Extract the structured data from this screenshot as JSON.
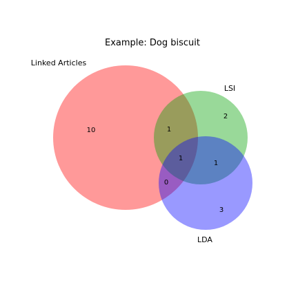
{
  "diagram": {
    "type": "venn3",
    "title": "Example: Dog biscuit",
    "sets": [
      {
        "name": "Linked Articles",
        "color": "#ff0000"
      },
      {
        "name": "LSI",
        "color": "#00a000"
      },
      {
        "name": "LDA",
        "color": "#0000ff"
      }
    ],
    "regions": {
      "linked_only": "10",
      "lsi_only": "2",
      "lda_only": "3",
      "linked_lsi": "1",
      "linked_lda": "0",
      "lsi_lda": "1",
      "all_three": "1"
    },
    "opacity": 0.4
  }
}
